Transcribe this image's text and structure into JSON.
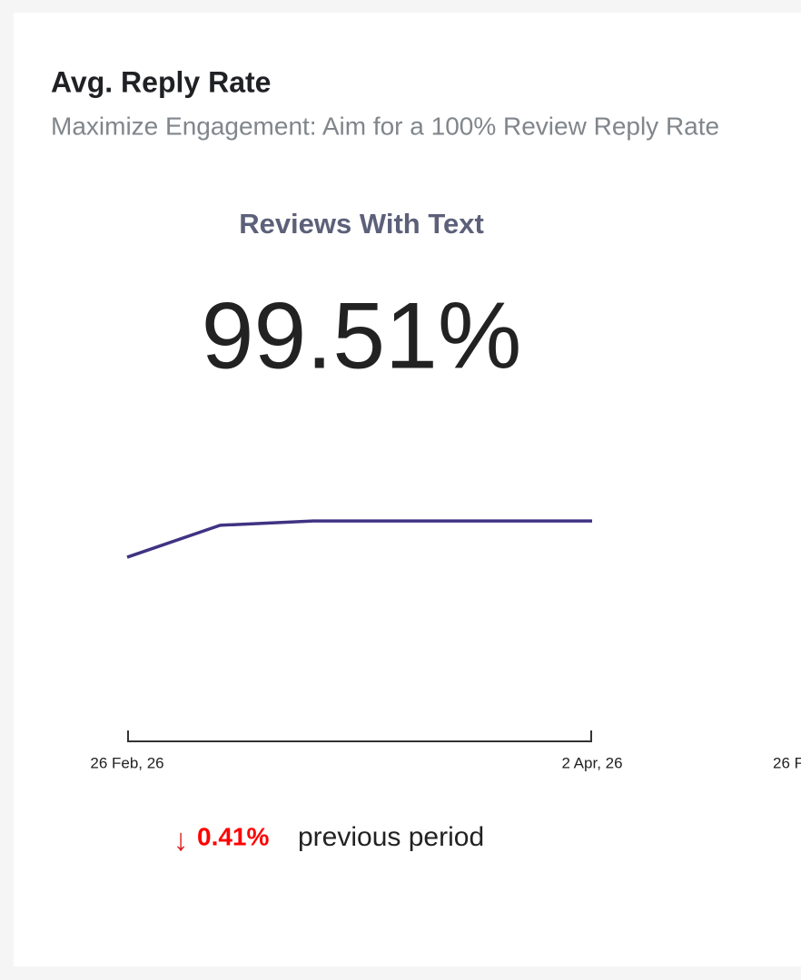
{
  "card": {
    "title": "Avg. Reply Rate",
    "subtitle": "Maximize Engagement: Aim for a 100% Review Reply Rate"
  },
  "kpi": {
    "label": "Reviews With Text",
    "value": "99.51%",
    "change": "0.41%",
    "change_label": "previous period"
  },
  "chart_data": {
    "type": "line",
    "categories": [
      "26 Feb, 26",
      null,
      null,
      null,
      null,
      "2 Apr, 26"
    ],
    "values": [
      58.1,
      69.1,
      70.6,
      70.6,
      70.6,
      70.6
    ],
    "color": "#3f3383",
    "ylim": [
      0,
      100
    ]
  },
  "next_card": {
    "axis_label": "26 F"
  }
}
